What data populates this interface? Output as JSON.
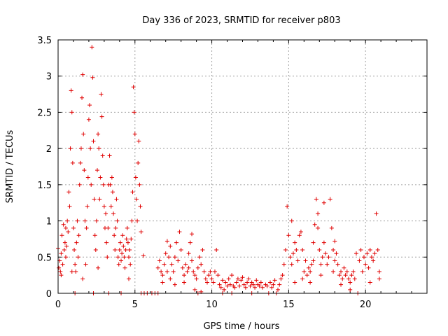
{
  "chart_data": {
    "type": "scatter",
    "title": "Day 336 of 2023, SRMTID for receiver p803",
    "xlabel": "GPS time / hours",
    "ylabel": "SRMTID / TECUs",
    "xlim": [
      0,
      24
    ],
    "ylim": [
      0,
      3.5
    ],
    "xticks": [
      "0",
      "5",
      "10",
      "15",
      "20"
    ],
    "yticks": [
      "0",
      "0.5",
      "1",
      "1.5",
      "2",
      "2.5",
      "3",
      "3.5"
    ],
    "grid": true,
    "marker": "plus",
    "color": "#e00000",
    "series": [
      {
        "name": "SRMTID",
        "points": [
          [
            0.0,
            0.62
          ],
          [
            0.05,
            0.35
          ],
          [
            0.1,
            0.45
          ],
          [
            0.15,
            0.3
          ],
          [
            0.2,
            0.55
          ],
          [
            0.25,
            0.8
          ],
          [
            0.3,
            0.4
          ],
          [
            0.35,
            0.95
          ],
          [
            0.4,
            0.6
          ],
          [
            0.45,
            0.7
          ],
          [
            0.5,
            0.5
          ],
          [
            0.55,
            0.65
          ],
          [
            0.6,
            1.0
          ],
          [
            0.65,
            0.85
          ],
          [
            0.7,
            1.4
          ],
          [
            0.75,
            1.2
          ],
          [
            0.8,
            2.0
          ],
          [
            0.85,
            2.8
          ],
          [
            0.9,
            2.5
          ],
          [
            0.95,
            1.8
          ],
          [
            1.0,
            0.9
          ],
          [
            1.05,
            0.6
          ],
          [
            1.1,
            0.4
          ],
          [
            1.15,
            0.3
          ],
          [
            1.2,
            0.7
          ],
          [
            1.25,
            1.0
          ],
          [
            1.3,
            0.5
          ],
          [
            1.35,
            0.8
          ],
          [
            1.4,
            1.5
          ],
          [
            1.45,
            1.8
          ],
          [
            1.5,
            2.0
          ],
          [
            1.55,
            2.7
          ],
          [
            1.6,
            3.02
          ],
          [
            1.65,
            2.2
          ],
          [
            1.7,
            1.7
          ],
          [
            1.75,
            1.0
          ],
          [
            1.8,
            0.4
          ],
          [
            1.85,
            0.9
          ],
          [
            1.9,
            1.2
          ],
          [
            1.95,
            1.6
          ],
          [
            2.0,
            2.4
          ],
          [
            2.05,
            2.6
          ],
          [
            2.1,
            2.0
          ],
          [
            2.15,
            1.5
          ],
          [
            2.2,
            3.4
          ],
          [
            2.25,
            2.98
          ],
          [
            2.3,
            2.1
          ],
          [
            2.35,
            1.3
          ],
          [
            2.4,
            0.8
          ],
          [
            2.45,
            0.6
          ],
          [
            2.5,
            1.0
          ],
          [
            2.55,
            1.7
          ],
          [
            2.6,
            2.2
          ],
          [
            2.65,
            2.0
          ],
          [
            2.7,
            1.3
          ],
          [
            2.75,
            1.6
          ],
          [
            2.8,
            2.75
          ],
          [
            2.85,
            2.44
          ],
          [
            2.9,
            1.9
          ],
          [
            2.95,
            1.5
          ],
          [
            3.0,
            1.2
          ],
          [
            3.05,
            0.9
          ],
          [
            3.1,
            1.1
          ],
          [
            3.15,
            0.7
          ],
          [
            3.2,
            0.5
          ],
          [
            3.25,
            0.9
          ],
          [
            3.3,
            1.5
          ],
          [
            3.35,
            1.9
          ],
          [
            3.4,
            1.5
          ],
          [
            3.45,
            1.2
          ],
          [
            3.5,
            1.6
          ],
          [
            3.55,
            1.4
          ],
          [
            3.6,
            1.1
          ],
          [
            3.65,
            0.8
          ],
          [
            3.7,
            0.6
          ],
          [
            3.75,
            0.9
          ],
          [
            3.8,
            1.3
          ],
          [
            3.85,
            1.0
          ],
          [
            3.9,
            0.5
          ],
          [
            3.95,
            0.4
          ],
          [
            4.0,
            0.6
          ],
          [
            4.05,
            0.7
          ],
          [
            4.1,
            0.45
          ],
          [
            4.15,
            0.55
          ],
          [
            4.2,
            0.8
          ],
          [
            4.25,
            0.65
          ],
          [
            4.3,
            0.5
          ],
          [
            4.35,
            0.35
          ],
          [
            4.4,
            0.6
          ],
          [
            4.45,
            0.75
          ],
          [
            4.5,
            0.9
          ],
          [
            4.55,
            0.7
          ],
          [
            4.6,
            0.5
          ],
          [
            4.65,
            0.6
          ],
          [
            4.7,
            0.4
          ],
          [
            4.75,
            0.75
          ],
          [
            4.8,
            1.0
          ],
          [
            4.85,
            1.4
          ],
          [
            4.9,
            2.85
          ],
          [
            4.95,
            2.5
          ],
          [
            5.0,
            2.2
          ],
          [
            5.05,
            1.6
          ],
          [
            5.1,
            1.3
          ],
          [
            5.15,
            1.0
          ],
          [
            5.2,
            1.8
          ],
          [
            5.25,
            2.1
          ],
          [
            5.3,
            1.5
          ],
          [
            5.35,
            1.2
          ],
          [
            5.4,
            0.85
          ],
          [
            5.55,
            0.52
          ],
          [
            0.2,
            0.25
          ],
          [
            0.5,
            0.9
          ],
          [
            0.9,
            0.3
          ],
          [
            1.1,
            0.0
          ],
          [
            1.6,
            0.2
          ],
          [
            2.3,
            0.0
          ],
          [
            2.6,
            0.35
          ],
          [
            3.3,
            0.0
          ],
          [
            4.1,
            0.0
          ],
          [
            4.6,
            0.2
          ],
          [
            5.4,
            0.0
          ],
          [
            5.6,
            0.0
          ],
          [
            5.8,
            0.0
          ],
          [
            6.1,
            0.0
          ],
          [
            6.3,
            0.0
          ],
          [
            6.5,
            0.0
          ],
          [
            6.5,
            0.35
          ],
          [
            6.6,
            0.45
          ],
          [
            6.7,
            0.3
          ],
          [
            6.8,
            0.25
          ],
          [
            6.9,
            0.4
          ],
          [
            7.0,
            0.55
          ],
          [
            7.1,
            0.3
          ],
          [
            7.2,
            0.5
          ],
          [
            7.3,
            0.65
          ],
          [
            7.4,
            0.4
          ],
          [
            7.5,
            0.3
          ],
          [
            7.6,
            0.5
          ],
          [
            7.7,
            0.7
          ],
          [
            7.8,
            0.45
          ],
          [
            7.9,
            0.85
          ],
          [
            8.0,
            0.6
          ],
          [
            8.1,
            0.35
          ],
          [
            8.2,
            0.25
          ],
          [
            8.3,
            0.4
          ],
          [
            8.4,
            0.3
          ],
          [
            8.5,
            0.55
          ],
          [
            8.6,
            0.7
          ],
          [
            8.7,
            0.45
          ],
          [
            8.8,
            0.3
          ],
          [
            8.9,
            0.25
          ],
          [
            9.0,
            0.2
          ],
          [
            9.1,
            0.35
          ],
          [
            9.2,
            0.5
          ],
          [
            9.3,
            0.4
          ],
          [
            9.4,
            0.6
          ],
          [
            9.5,
            0.3
          ],
          [
            9.6,
            0.2
          ],
          [
            9.7,
            0.15
          ],
          [
            9.8,
            0.25
          ],
          [
            9.9,
            0.3
          ],
          [
            10.0,
            0.2
          ],
          [
            10.1,
            0.15
          ],
          [
            10.2,
            0.3
          ],
          [
            10.3,
            0.6
          ],
          [
            10.4,
            0.25
          ],
          [
            8.9,
            0.05
          ],
          [
            9.1,
            0.0
          ],
          [
            9.3,
            0.02
          ],
          [
            6.8,
            0.15
          ],
          [
            7.3,
            0.2
          ],
          [
            7.6,
            0.12
          ],
          [
            8.2,
            0.15
          ],
          [
            8.5,
            0.35
          ],
          [
            8.7,
            0.82
          ],
          [
            7.1,
            0.72
          ],
          [
            10.5,
            0.12
          ],
          [
            10.6,
            0.08
          ],
          [
            10.7,
            0.18
          ],
          [
            10.8,
            0.05
          ],
          [
            10.9,
            0.15
          ],
          [
            11.0,
            0.1
          ],
          [
            11.1,
            0.2
          ],
          [
            11.2,
            0.12
          ],
          [
            11.3,
            0.25
          ],
          [
            11.4,
            0.1
          ],
          [
            11.5,
            0.08
          ],
          [
            11.6,
            0.15
          ],
          [
            11.7,
            0.2
          ],
          [
            11.8,
            0.1
          ],
          [
            11.9,
            0.18
          ],
          [
            12.0,
            0.22
          ],
          [
            12.1,
            0.12
          ],
          [
            12.2,
            0.08
          ],
          [
            12.3,
            0.15
          ],
          [
            12.4,
            0.2
          ],
          [
            12.5,
            0.1
          ],
          [
            12.6,
            0.15
          ],
          [
            12.7,
            0.12
          ],
          [
            12.8,
            0.08
          ],
          [
            12.9,
            0.18
          ],
          [
            13.0,
            0.12
          ],
          [
            13.1,
            0.1
          ],
          [
            13.2,
            0.15
          ],
          [
            13.3,
            0.08
          ],
          [
            13.5,
            0.12
          ],
          [
            13.6,
            0.1
          ],
          [
            13.8,
            0.15
          ],
          [
            13.9,
            0.08
          ],
          [
            14.0,
            0.12
          ],
          [
            14.1,
            0.18
          ],
          [
            14.3,
            0.05
          ],
          [
            14.4,
            0.12
          ],
          [
            14.5,
            0.2
          ],
          [
            14.6,
            0.25
          ],
          [
            14.7,
            0.4
          ],
          [
            13.7,
            0.0
          ],
          [
            14.2,
            0.0
          ],
          [
            10.7,
            0.0
          ],
          [
            11.3,
            0.0
          ],
          [
            12.6,
            0.0
          ],
          [
            14.8,
            0.6
          ],
          [
            14.9,
            1.2
          ],
          [
            15.0,
            0.8
          ],
          [
            15.1,
            0.5
          ],
          [
            15.2,
            0.4
          ],
          [
            15.3,
            0.55
          ],
          [
            15.4,
            0.7
          ],
          [
            15.5,
            0.6
          ],
          [
            15.6,
            0.45
          ],
          [
            15.7,
            0.8
          ],
          [
            15.8,
            0.85
          ],
          [
            15.9,
            0.6
          ],
          [
            16.0,
            0.3
          ],
          [
            16.1,
            0.45
          ],
          [
            16.2,
            0.25
          ],
          [
            16.3,
            0.35
          ],
          [
            16.4,
            0.3
          ],
          [
            16.5,
            0.4
          ],
          [
            16.6,
            0.7
          ],
          [
            16.7,
            0.95
          ],
          [
            16.8,
            1.3
          ],
          [
            16.9,
            0.9
          ],
          [
            17.0,
            0.6
          ],
          [
            17.1,
            0.4
          ],
          [
            17.2,
            0.5
          ],
          [
            17.3,
            0.7
          ],
          [
            17.4,
            0.55
          ],
          [
            17.5,
            0.4
          ],
          [
            17.6,
            0.5
          ],
          [
            17.7,
            1.3
          ],
          [
            17.8,
            0.9
          ],
          [
            17.9,
            0.6
          ],
          [
            18.0,
            0.45
          ],
          [
            18.1,
            0.55
          ],
          [
            18.2,
            0.4
          ],
          [
            18.3,
            0.25
          ],
          [
            18.4,
            0.3
          ],
          [
            18.5,
            0.2
          ],
          [
            18.6,
            0.35
          ],
          [
            18.7,
            0.25
          ],
          [
            18.8,
            0.3
          ],
          [
            18.9,
            0.2
          ],
          [
            19.0,
            0.15
          ],
          [
            19.1,
            0.25
          ],
          [
            19.2,
            0.3
          ],
          [
            19.3,
            0.2
          ],
          [
            19.6,
            0.45
          ],
          [
            19.7,
            0.6
          ],
          [
            19.8,
            0.3
          ],
          [
            19.9,
            0.5
          ],
          [
            20.0,
            0.4
          ],
          [
            20.1,
            0.55
          ],
          [
            20.2,
            0.35
          ],
          [
            20.3,
            0.6
          ],
          [
            20.4,
            0.5
          ],
          [
            20.5,
            0.45
          ],
          [
            20.6,
            0.55
          ],
          [
            20.7,
            1.1
          ],
          [
            20.8,
            0.6
          ],
          [
            20.9,
            0.3
          ],
          [
            15.4,
            0.15
          ],
          [
            15.9,
            0.2
          ],
          [
            16.4,
            0.15
          ],
          [
            17.1,
            0.25
          ],
          [
            17.9,
            0.3
          ],
          [
            18.4,
            0.12
          ],
          [
            19.0,
            0.05
          ],
          [
            19.5,
            0.0
          ],
          [
            20.3,
            0.15
          ],
          [
            20.9,
            0.2
          ],
          [
            15.2,
            1.0
          ],
          [
            16.9,
            1.1
          ],
          [
            17.3,
            1.25
          ],
          [
            16.6,
            0.45
          ],
          [
            18.0,
            0.72
          ],
          [
            19.4,
            0.55
          ]
        ]
      }
    ]
  }
}
